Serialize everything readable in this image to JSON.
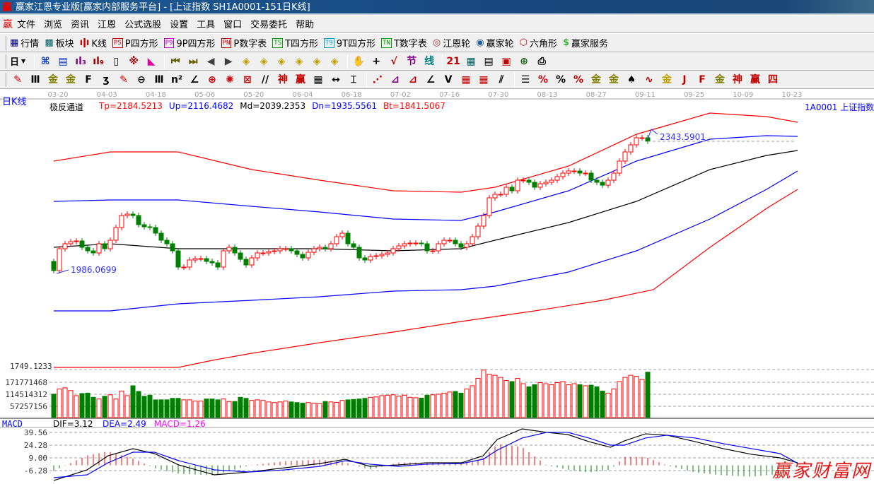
{
  "window": {
    "title": "赢家江恩专业版[赢家内部服务平台] - [上证指数  SH1A0001-151日K线]",
    "logo": "赢"
  },
  "menu": {
    "logo": "赢",
    "items": [
      "文件",
      "浏览",
      "资讯",
      "江恩",
      "公式选股",
      "设置",
      "工具",
      "窗口",
      "交易委托",
      "帮助"
    ]
  },
  "toolbar1": [
    {
      "name": "quote-table",
      "glyph": "▦",
      "color": "#000080",
      "label": "行情"
    },
    {
      "name": "sector",
      "glyph": "▩",
      "color": "#006060",
      "label": "板块"
    },
    {
      "name": "kline",
      "glyph": "ıǀı",
      "color": "#d00000",
      "label": "K线"
    },
    {
      "name": "p-square",
      "badge": "PS",
      "color": "#c00000",
      "label": "P四方形"
    },
    {
      "name": "9p-square",
      "badge": "P9",
      "color": "#c000c0",
      "label": "9P四方形"
    },
    {
      "name": "p-number-table",
      "badge": "PN",
      "color": "#c00000",
      "label": "P数字表"
    },
    {
      "name": "t-square",
      "badge": "TS",
      "color": "#00a000",
      "label": "T四方形"
    },
    {
      "name": "9t-square",
      "badge": "T9",
      "color": "#00a0c0",
      "label": "9T四方形"
    },
    {
      "name": "t-number-table",
      "badge": "TN",
      "color": "#00a000",
      "label": "T数字表"
    },
    {
      "name": "gann-wheel",
      "glyph": "◎",
      "color": "#a03030",
      "label": "江恩轮"
    },
    {
      "name": "winner-wheel",
      "glyph": "◉",
      "color": "#2060a0",
      "label": "赢家轮"
    },
    {
      "name": "hexagon",
      "glyph": "⬡",
      "color": "#c00000",
      "label": "六角形"
    },
    {
      "name": "winner-service",
      "glyph": "$",
      "color": "#40b040",
      "label": "赢家服务"
    }
  ],
  "toolbar2": {
    "period": "日",
    "icons": [
      {
        "name": "chain",
        "glyph": "⌘",
        "color": "#0030c0"
      },
      {
        "name": "clipboard",
        "glyph": "▤",
        "color": "#0030c0"
      },
      {
        "name": "bars-3",
        "glyph": "ıl₃",
        "color": "#800080"
      },
      {
        "name": "bars-9",
        "glyph": "ıl₉",
        "color": "#a00000"
      },
      {
        "name": "candle",
        "glyph": "▯",
        "color": "#000"
      },
      {
        "name": "pattern",
        "glyph": "※",
        "color": "#a00000"
      },
      {
        "name": "flag",
        "glyph": "◣",
        "color": "#e000a0"
      },
      {
        "name": "first",
        "glyph": "⏮",
        "color": "#606000"
      },
      {
        "name": "last",
        "glyph": "⏭",
        "color": "#606000"
      },
      {
        "name": "prev",
        "glyph": "◀",
        "color": "#404040"
      },
      {
        "name": "next",
        "glyph": "▶",
        "color": "#404040"
      },
      {
        "name": "move-left",
        "glyph": "◈",
        "color": "#c0a000"
      },
      {
        "name": "move-right",
        "glyph": "◈",
        "color": "#c0a000"
      },
      {
        "name": "zoom-h",
        "glyph": "◈",
        "color": "#c0a000"
      },
      {
        "name": "zoom-in",
        "glyph": "◈",
        "color": "#c0a000"
      },
      {
        "name": "zoom-v",
        "glyph": "◈",
        "color": "#c0a000"
      },
      {
        "name": "zoom-all",
        "glyph": "◈",
        "color": "#c0a000"
      },
      {
        "name": "hand",
        "glyph": "✋",
        "color": "#000"
      },
      {
        "name": "crosshair",
        "glyph": "+",
        "color": "#000"
      },
      {
        "name": "draw-line",
        "glyph": "√",
        "color": "#c00000"
      },
      {
        "name": "section",
        "glyph": "节",
        "color": "#800080"
      },
      {
        "name": "line-tool",
        "glyph": "线",
        "color": "#008080"
      },
      {
        "name": "calendar",
        "glyph": "21",
        "color": "#c00000"
      },
      {
        "name": "calculator",
        "glyph": "▦",
        "color": "#006060"
      },
      {
        "name": "notes",
        "glyph": "▤",
        "color": "#000"
      },
      {
        "name": "save",
        "glyph": "▣",
        "color": "#c00000"
      },
      {
        "name": "network",
        "glyph": "⊕",
        "color": "#206020"
      },
      {
        "name": "print",
        "glyph": "⎙",
        "color": "#000"
      }
    ]
  },
  "toolbar3": [
    {
      "name": "pen",
      "glyph": "✎",
      "color": "#c00000"
    },
    {
      "name": "tally",
      "glyph": "Ⅲ",
      "color": "#000"
    },
    {
      "name": "gold1",
      "glyph": "金",
      "color": "#808000"
    },
    {
      "name": "gold2",
      "glyph": "金",
      "color": "#808000"
    },
    {
      "name": "fib",
      "glyph": "F",
      "color": "#000"
    },
    {
      "name": "spiral",
      "glyph": "ʒ",
      "color": "#000"
    },
    {
      "name": "pen2",
      "glyph": "✎",
      "color": "#c00000"
    },
    {
      "name": "circle",
      "glyph": "⊖",
      "color": "#000"
    },
    {
      "name": "lines",
      "glyph": "Ⅲ",
      "color": "#000"
    },
    {
      "name": "n2",
      "glyph": "n²",
      "color": "#000"
    },
    {
      "name": "angle",
      "glyph": "∠",
      "color": "#000"
    },
    {
      "name": "target",
      "glyph": "⊕",
      "color": "#c00000"
    },
    {
      "name": "radar",
      "glyph": "✺",
      "color": "#c00000"
    },
    {
      "name": "box",
      "glyph": "⊠",
      "color": "#c00000"
    },
    {
      "name": "slash",
      "glyph": "//",
      "color": "#000"
    },
    {
      "name": "shen",
      "glyph": "神",
      "color": "#c00000"
    },
    {
      "name": "ying",
      "glyph": "赢",
      "color": "#c00000"
    },
    {
      "name": "grid",
      "glyph": "▦",
      "color": "#000"
    },
    {
      "name": "width",
      "glyph": "↔",
      "color": "#000"
    },
    {
      "name": "frame",
      "glyph": "⌶",
      "color": "#000"
    },
    {
      "name": "fan",
      "glyph": "⋰",
      "color": "#c00000"
    },
    {
      "name": "fan-box",
      "glyph": "⊿",
      "color": "#800080"
    },
    {
      "name": "fan-box2",
      "glyph": "⊿",
      "color": "#c00000"
    },
    {
      "name": "angle2",
      "glyph": "∠",
      "color": "#000"
    },
    {
      "name": "v-line",
      "glyph": "V",
      "color": "#000"
    },
    {
      "name": "grid2",
      "glyph": "▦",
      "color": "#c00000"
    },
    {
      "name": "grid3",
      "glyph": "▦",
      "color": "#c00000"
    },
    {
      "name": "parallel",
      "glyph": "⫽",
      "color": "#000"
    },
    {
      "name": "ladder",
      "glyph": "☰",
      "color": "#000"
    },
    {
      "name": "pct-angle",
      "glyph": "%",
      "color": "#c00000"
    },
    {
      "name": "percent",
      "glyph": "%",
      "color": "#000"
    },
    {
      "name": "pct-lines",
      "glyph": "%",
      "color": "#c00000"
    },
    {
      "name": "gold-circle",
      "glyph": "金",
      "color": "#808000"
    },
    {
      "name": "gold-lines",
      "glyph": "金",
      "color": "#808000"
    },
    {
      "name": "torch",
      "glyph": "♠",
      "color": "#000"
    },
    {
      "name": "wave",
      "glyph": "∿",
      "color": "#c00000"
    },
    {
      "name": "gold-red",
      "glyph": "金",
      "color": "#c0a000"
    },
    {
      "name": "j-angle",
      "glyph": "J",
      "color": "#c00000"
    },
    {
      "name": "f-angle",
      "glyph": "F",
      "color": "#c00000"
    },
    {
      "name": "gold-angle",
      "glyph": "金",
      "color": "#808000"
    },
    {
      "name": "shen-angle",
      "glyph": "神",
      "color": "#c00000"
    },
    {
      "name": "ying-angle",
      "glyph": "赢",
      "color": "#c00000"
    },
    {
      "name": "si-angle",
      "glyph": "四",
      "color": "#c00000"
    }
  ],
  "chart": {
    "period_label": "日K线",
    "indicator_name": "极反通道",
    "params": [
      {
        "text": "Tp=2184.5213",
        "color": "#ff0000"
      },
      {
        "text": "Up=2116.4682",
        "color": "#0000ff"
      },
      {
        "text": "Md=2039.2353",
        "color": "#000000"
      },
      {
        "text": "Dn=1935.5561",
        "color": "#0000ff"
      },
      {
        "text": "Bt=1841.5067",
        "color": "#ff0000"
      }
    ],
    "symbol": "1A0001  上证指数",
    "high_label": "2343.5901",
    "low_label": "1986.0699",
    "axis_label": "1749.1233",
    "dates": [
      "03-20",
      "04-03",
      "04-18",
      "05-06",
      "05-20",
      "06-04",
      "06-18",
      "07-02",
      "07-16",
      "07-30",
      "08-13",
      "08-27",
      "09-11",
      "09-25",
      "10-09",
      "10-23"
    ],
    "up_color": "#ff0000",
    "down_color": "#008000"
  },
  "chart_data": {
    "type": "candlestick",
    "first_open": 2015,
    "close": [
      1990.2,
      2049.1,
      2062.4,
      2068.1,
      2070.0,
      2052.9,
      2043.4,
      2037.7,
      2062.4,
      2049.1,
      2071.9,
      2106.1,
      2138.4,
      2142.2,
      2138.4,
      2113.7,
      2108.0,
      2106.1,
      2090.9,
      2071.9,
      2062.4,
      2043.4,
      1999.7,
      1999.7,
      2018.7,
      2022.5,
      2022.5,
      2014.9,
      2011.1,
      1999.7,
      2043.4,
      2052.9,
      2037.7,
      2020.6,
      2005.4,
      2024.4,
      2037.7,
      2037.7,
      2041.5,
      2043.4,
      2049.1,
      2049.1,
      2043.4,
      2033.9,
      2024.4,
      2039.6,
      2049.1,
      2052.9,
      2049.1,
      2062.4,
      2081.4,
      2090.9,
      2062.4,
      2052.9,
      2024.4,
      2018.7,
      2028.2,
      2030.1,
      2033.9,
      2037.7,
      2049.1,
      2056.7,
      2062.4,
      2064.3,
      2064.3,
      2062.4,
      2043.4,
      2043.4,
      2062.4,
      2071.9,
      2071.9,
      2062.4,
      2052.9,
      2062.4,
      2081.4,
      2109.9,
      2138.4,
      2185.9,
      2195.4,
      2195.4,
      2214.4,
      2204.9,
      2233.4,
      2233.4,
      2227.7,
      2214.4,
      2223.9,
      2227.7,
      2233.4,
      2242.9,
      2252.4,
      2258.1,
      2258.1,
      2252.4,
      2252.4,
      2233.4,
      2227.7,
      2219.9,
      2233.4,
      2252.4,
      2284.7,
      2309.4,
      2328.4,
      2347.4,
      2347.4,
      2338.2
    ],
    "high": 2343.5901,
    "low": 1986.0699,
    "channel": {
      "x": [
        0,
        10,
        22,
        35,
        47,
        60,
        72,
        78,
        91,
        103,
        116,
        126,
        131.5
      ],
      "Tp": [
        2284.7,
        2309.4,
        2309.4,
        2261.9,
        2233.4,
        2204.9,
        2201.1,
        2214.4,
        2271.4,
        2356.9,
        2413.9,
        2404.4,
        2389.2
      ],
      "Up": [
        2176.4,
        2180.2,
        2180.2,
        2163.1,
        2147.9,
        2128.9,
        2125.1,
        2147.9,
        2204.9,
        2284.7,
        2343.6,
        2353.1,
        2351.2
      ],
      "Md": [
        2052.9,
        2062.4,
        2049.1,
        2049.1,
        2049.1,
        2043.4,
        2049.1,
        2071.9,
        2119.4,
        2176.4,
        2261.9,
        2299.9,
        2313.2
      ],
      "Dn": [
        1881.9,
        1881.9,
        1900.9,
        1910.4,
        1919.9,
        1935.1,
        1938.9,
        1948.4,
        1986.4,
        2043.4,
        2128.9,
        2208.7,
        2258.1
      ],
      "bt_x": [
        0,
        10,
        22,
        28,
        35,
        47,
        60,
        72,
        85,
        97,
        106,
        116,
        126,
        131.5
      ],
      "Bt": [
        1729.9,
        1729.9,
        1729.9,
        1748.9,
        1767.9,
        1796.4,
        1824.9,
        1853.4,
        1881.9,
        1910.4,
        1938.9,
        2052.9,
        2157.4,
        2208.7
      ]
    },
    "volume": {
      "unit": "millions",
      "ticks": [
        57257156,
        114514312,
        171771468
      ],
      "values": [
        115,
        140,
        145,
        132,
        108,
        118,
        120,
        100,
        92,
        105,
        112,
        92,
        130,
        108,
        155,
        128,
        105,
        110,
        88,
        88,
        88,
        95,
        95,
        88,
        88,
        82,
        82,
        92,
        92,
        88,
        92,
        80,
        80,
        100,
        95,
        85,
        88,
        85,
        78,
        75,
        78,
        82,
        78,
        75,
        72,
        75,
        72,
        70,
        80,
        78,
        76,
        85,
        88,
        90,
        92,
        95,
        100,
        102,
        108,
        110,
        112,
        106,
        110,
        100,
        98,
        96,
        110,
        112,
        115,
        120,
        125,
        128,
        120,
        140,
        155,
        190,
        230,
        210,
        205,
        195,
        180,
        175,
        190,
        165,
        150,
        160,
        170,
        165,
        160,
        170,
        175,
        160,
        165,
        160,
        155,
        158,
        150,
        130,
        120,
        140,
        175,
        195,
        205,
        200,
        185,
        220
      ]
    },
    "macd": {
      "label": "MACD",
      "dif_label": "DIF=3.12",
      "dea_label": "DEA=2.49",
      "macd_label": "MACD=1.26",
      "ticks": [
        "39.56",
        "24.28",
        "9.00",
        "-6.28"
      ],
      "x": [
        0,
        5.9,
        9.6,
        14,
        17.8,
        22.1,
        28.4,
        34.6,
        40.9,
        47.1,
        51.5,
        55.9,
        60.9,
        65.9,
        72.1,
        75.9,
        78.4,
        82.8,
        87.1,
        90.9,
        94.6,
        98.4,
        100.9,
        104.6,
        108.4,
        113.4,
        118.4,
        123.4,
        128.4,
        131.5
      ],
      "dif": [
        -18.2,
        -5.4,
        11.5,
        20.0,
        14.1,
        0.5,
        -11.4,
        -8.0,
        -2.9,
        2.2,
        7.3,
        -1.2,
        0.5,
        3.1,
        3.1,
        11.5,
        31.1,
        43.8,
        39.6,
        37.0,
        28.5,
        21.7,
        29.4,
        37.9,
        36.2,
        28.5,
        20.0,
        13.2,
        9.0,
        3.12
      ],
      "dea": [
        -14.8,
        -11.4,
        3.1,
        15.8,
        15.8,
        5.6,
        -5.4,
        -8.0,
        -5.4,
        -1.2,
        5.6,
        1.4,
        -1.2,
        1.4,
        2.2,
        7.3,
        18.3,
        32.8,
        39.6,
        39.6,
        32.8,
        24.3,
        24.3,
        32.8,
        36.2,
        32.8,
        26.0,
        20.0,
        14.1,
        2.49
      ]
    }
  },
  "watermark": "赢家财富网"
}
